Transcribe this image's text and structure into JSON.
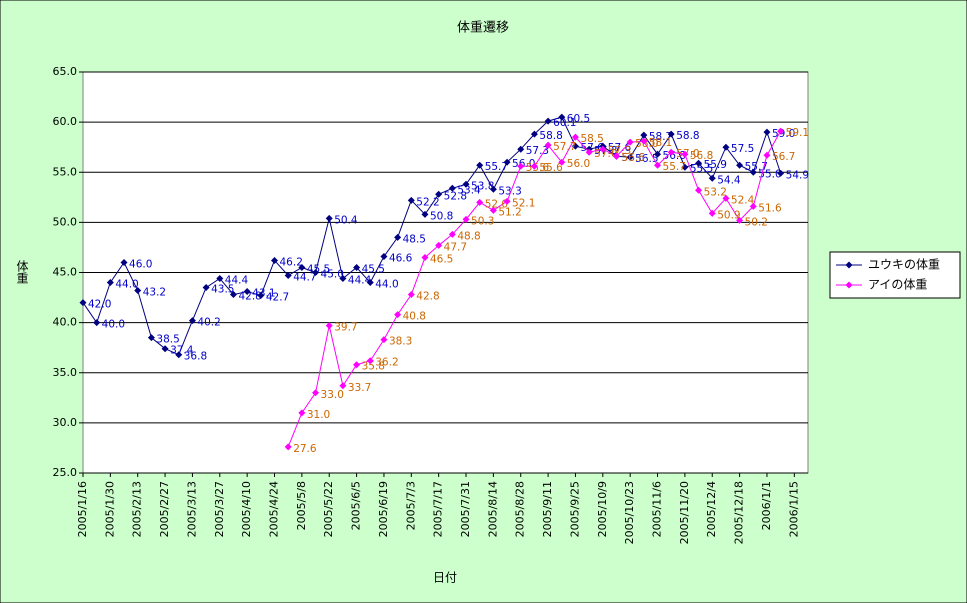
{
  "chart_data": {
    "type": "line",
    "title": "体重遷移",
    "x_label": "日付",
    "y_label": "体重",
    "categories": [
      "2005/1/16",
      null,
      "2005/1/30",
      null,
      "2005/2/13",
      null,
      "2005/2/27",
      null,
      "2005/3/13",
      null,
      "2005/3/27",
      null,
      "2005/4/10",
      null,
      "2005/4/24",
      null,
      "2005/5/8",
      null,
      "2005/5/22",
      null,
      "2005/6/5",
      null,
      "2005/6/19",
      null,
      "2005/7/3",
      null,
      "2005/7/17",
      null,
      "2005/7/31",
      null,
      "2005/8/14",
      null,
      "2005/8/28",
      null,
      "2005/9/11",
      null,
      "2005/9/25",
      null,
      "2005/10/9",
      null,
      "2005/10/23",
      null,
      "2005/11/6",
      null,
      "2005/11/20",
      null,
      "2005/12/4",
      null,
      "2005/12/18",
      null,
      "2006/1/1",
      null,
      "2006/1/15",
      null
    ],
    "series": [
      {
        "name": "ユウキの体重",
        "color": "#000080",
        "label_color": "#0000cc",
        "values": [
          42.0,
          40.0,
          44.0,
          46.0,
          43.2,
          38.5,
          37.4,
          36.8,
          40.2,
          43.5,
          44.4,
          42.8,
          43.1,
          42.7,
          46.2,
          44.7,
          45.5,
          45.0,
          50.4,
          44.4,
          45.5,
          44.0,
          46.6,
          48.5,
          52.2,
          50.8,
          52.8,
          53.4,
          53.8,
          55.7,
          53.3,
          56.0,
          57.3,
          58.8,
          60.1,
          60.5,
          57.6,
          57.3,
          57.6,
          56.6,
          56.5,
          58.7,
          56.8,
          58.8,
          55.5,
          55.9,
          54.4,
          57.5,
          55.7,
          55.0,
          59.0,
          54.9,
          null,
          null
        ],
        "value_labels": [
          "42.0",
          "40.0",
          "44.0",
          "46.0",
          "43.2",
          "38.5",
          "37.4",
          "36.8",
          "40.2",
          "43.5",
          "44.4",
          "42.8",
          "43.1",
          "42.7",
          "46.2",
          "44.7",
          "45.5",
          "45.0",
          "50.4",
          "44.4",
          "45.5",
          "44.0",
          "46.6",
          "48.5",
          "52.2",
          "50.8",
          "52.8",
          "53.4",
          "53.8",
          "55.7",
          "53.3",
          "56.0",
          "57.3",
          "58.8",
          "60.1",
          "60.5",
          "57.6",
          "57.3",
          "57.6",
          "56.6",
          "56.5",
          "58.7",
          "56.8",
          "58.8",
          "55.5",
          "55.9",
          "54.4",
          "57.5",
          "55.7",
          "55.0",
          "59.0",
          "54.9",
          null,
          null
        ]
      },
      {
        "name": "アイの体重",
        "color": "#ff00ff",
        "label_color": "#cc6600",
        "values": [
          null,
          null,
          null,
          null,
          null,
          null,
          null,
          null,
          null,
          null,
          null,
          null,
          null,
          null,
          null,
          27.6,
          31.0,
          33.0,
          39.7,
          33.7,
          35.8,
          36.2,
          38.3,
          40.8,
          42.8,
          46.5,
          47.7,
          48.8,
          50.3,
          52.0,
          51.2,
          52.1,
          55.6,
          55.6,
          57.7,
          56.0,
          58.5,
          57.0,
          57.3,
          56.6,
          58.0,
          58.1,
          55.7,
          57.0,
          56.8,
          53.2,
          50.9,
          52.4,
          50.2,
          51.6,
          56.7,
          59.1,
          null,
          null
        ],
        "value_labels": [
          null,
          null,
          null,
          null,
          null,
          null,
          null,
          null,
          null,
          null,
          null,
          null,
          null,
          null,
          null,
          "27.6",
          "31.0",
          "33.0",
          "39.7",
          "33.7",
          "35.8",
          "36.2",
          "38.3",
          "40.8",
          "42.8",
          "46.5",
          "47.7",
          "48.8",
          "50.3",
          "52.0",
          "51.2",
          "52.1",
          "55.6",
          "55.6",
          "57.7",
          "56.0",
          "58.5",
          "57.0",
          "57.3",
          "56.6",
          "58.0",
          "58.1",
          "55.7",
          "57.0",
          "56.8",
          "53.2",
          "50.9",
          "52.4",
          "50.2",
          "51.6",
          "56.7",
          "59.1",
          null,
          null
        ]
      }
    ],
    "ylim": [
      25,
      65
    ],
    "yticks": [
      {
        "value": 25,
        "label": "25.0"
      },
      {
        "value": 30,
        "label": "30.0"
      },
      {
        "value": 35,
        "label": "35.0"
      },
      {
        "value": 40,
        "label": "40.0"
      },
      {
        "value": 45,
        "label": "45.0"
      },
      {
        "value": 50,
        "label": "50.0"
      },
      {
        "value": 55,
        "label": "55.0"
      },
      {
        "value": 60,
        "label": "60.0"
      },
      {
        "value": 65,
        "label": "65.0"
      }
    ],
    "grid": true,
    "legend": "right"
  }
}
